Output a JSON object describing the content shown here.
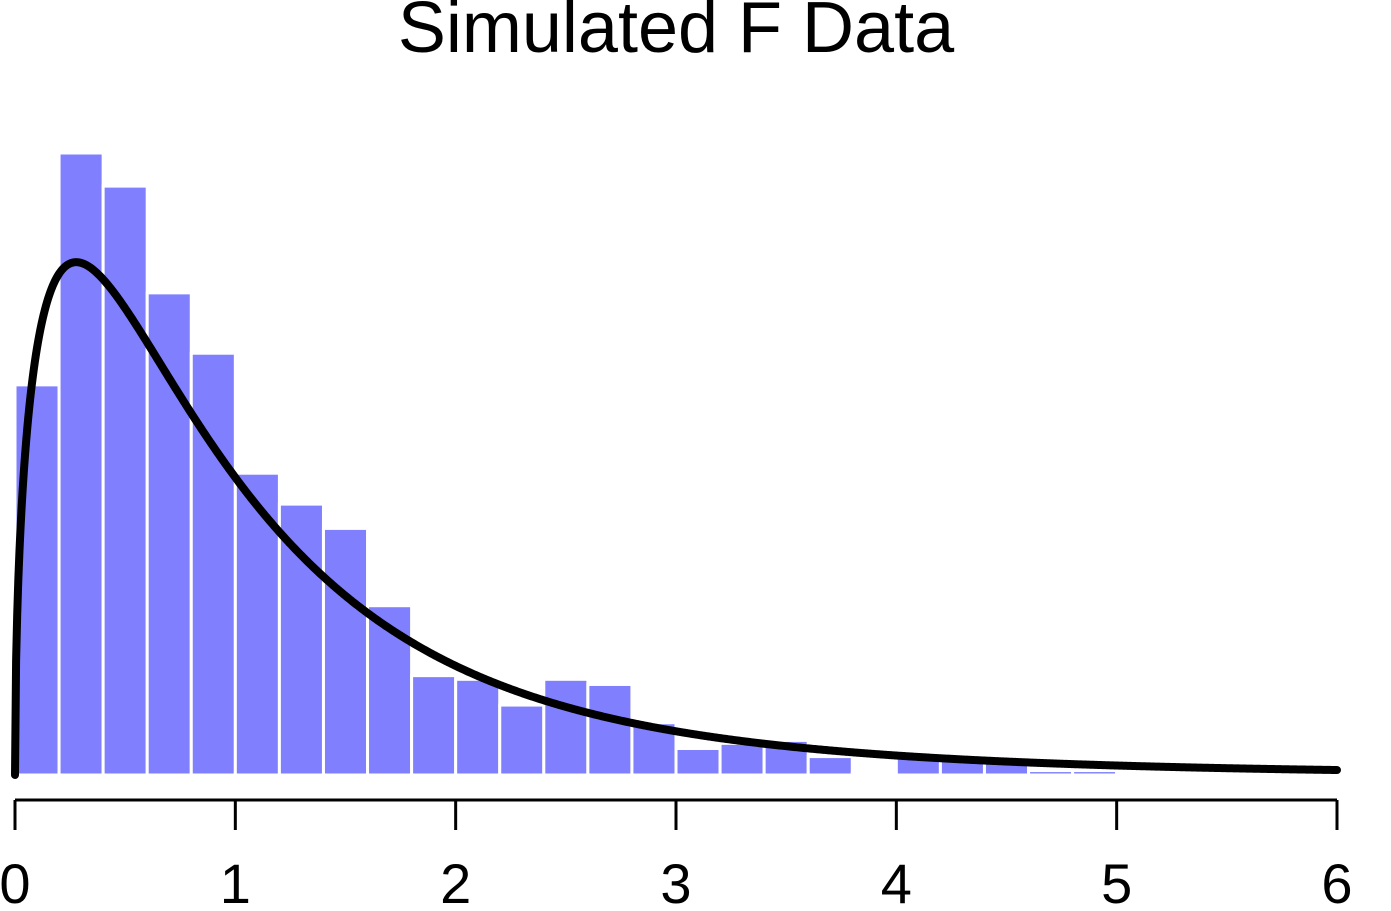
{
  "chart_data": {
    "type": "bar",
    "title": "Simulated F Data",
    "xlabel": "",
    "ylabel": "",
    "xlim": [
      0,
      6
    ],
    "ylim": [
      0,
      0.845
    ],
    "xticks": [
      "0",
      "1",
      "2",
      "3",
      "4",
      "5",
      "6"
    ],
    "grid": false,
    "legend": "none",
    "histogram": {
      "bin_width": 0.2,
      "bin_starts": [
        0.0,
        0.2,
        0.4,
        0.6,
        0.8,
        1.0,
        1.2,
        1.4,
        1.6,
        1.8,
        2.0,
        2.2,
        2.4,
        2.6,
        2.8,
        3.0,
        3.2,
        3.4,
        3.6,
        3.8,
        4.0,
        4.2,
        4.4,
        4.6,
        4.8,
        5.0,
        5.2,
        5.4,
        5.6,
        5.8
      ],
      "values": [
        0.53,
        0.845,
        0.8,
        0.655,
        0.573,
        0.41,
        0.368,
        0.335,
        0.23,
        0.135,
        0.13,
        0.095,
        0.13,
        0.123,
        0.071,
        0.036,
        0.043,
        0.047,
        0.025,
        0.002,
        0.027,
        0.02,
        0.017,
        0.006,
        0.006,
        0.003,
        0.002,
        0.001,
        0.001,
        0.001
      ]
    },
    "series": [
      {
        "name": "",
        "type": "bar"
      },
      {
        "name": "",
        "type": "line",
        "function": "F density",
        "df1": 3,
        "df2": 10
      }
    ],
    "colors": {
      "bars": "#8080ff",
      "curve": "#000000",
      "axis": "#000000"
    }
  }
}
